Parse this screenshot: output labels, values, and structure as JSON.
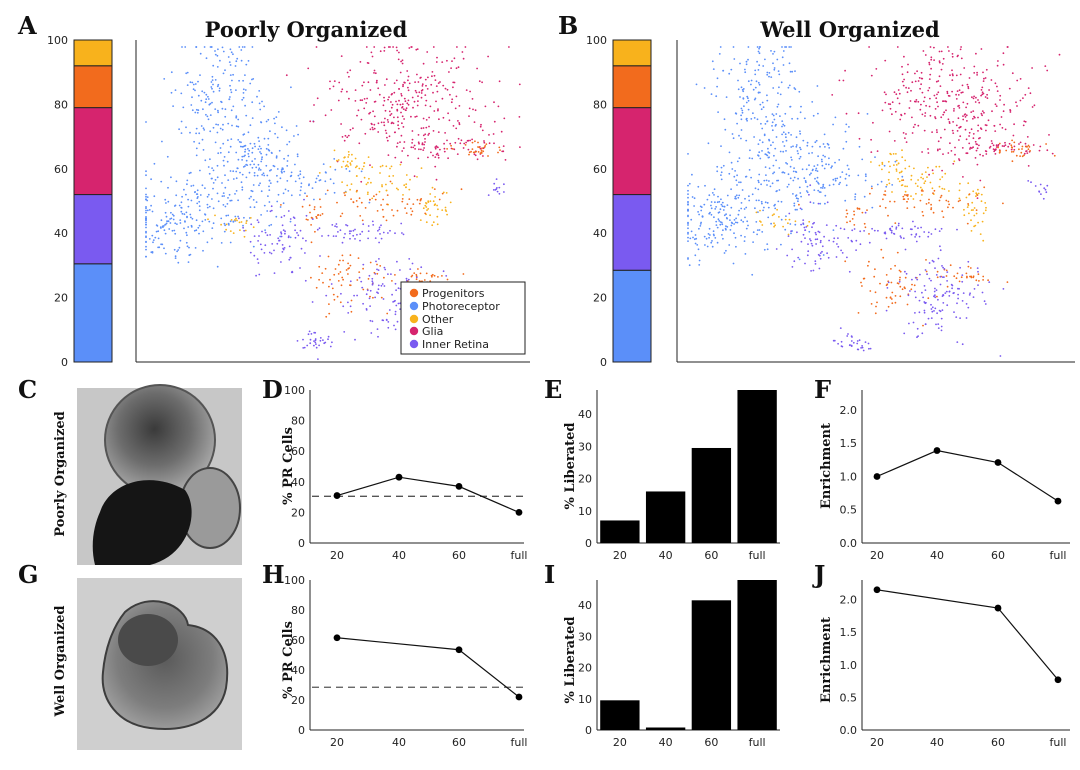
{
  "panels": {
    "A": {
      "letter": "A",
      "title": "Poorly Organized"
    },
    "B": {
      "letter": "B",
      "title": "Well Organized"
    },
    "C": {
      "letter": "C",
      "row_label": "Poorly Organized"
    },
    "D": {
      "letter": "D"
    },
    "E": {
      "letter": "E"
    },
    "F": {
      "letter": "F"
    },
    "G": {
      "letter": "G",
      "row_label": "Well Organized"
    },
    "H": {
      "letter": "H"
    },
    "I": {
      "letter": "I"
    },
    "J": {
      "letter": "J"
    }
  },
  "legend": [
    {
      "label": "Progenitors",
      "color": "#f26b1d"
    },
    {
      "label": "Photoreceptor",
      "color": "#5b8ff9"
    },
    {
      "label": "Other",
      "color": "#f8b21c"
    },
    {
      "label": "Glia",
      "color": "#d6246e"
    },
    {
      "label": "Inner Retina",
      "color": "#7a5af0"
    }
  ],
  "chart_data": [
    {
      "id": "A-stacked",
      "type": "bar",
      "stacked": true,
      "ylim": [
        0,
        100
      ],
      "yticks": [
        0,
        20,
        40,
        60,
        80,
        100
      ],
      "segments": [
        {
          "name": "Photoreceptor",
          "value": 30.5,
          "color": "#5b8ff9"
        },
        {
          "name": "Inner Retina",
          "value": 21.5,
          "color": "#7a5af0"
        },
        {
          "name": "Glia",
          "value": 27,
          "color": "#d6246e"
        },
        {
          "name": "Progenitors",
          "value": 13,
          "color": "#f26b1d"
        },
        {
          "name": "Other",
          "value": 8,
          "color": "#f8b21c"
        }
      ]
    },
    {
      "id": "B-stacked",
      "type": "bar",
      "stacked": true,
      "ylim": [
        0,
        100
      ],
      "yticks": [
        0,
        20,
        40,
        60,
        80,
        100
      ],
      "segments": [
        {
          "name": "Photoreceptor",
          "value": 28.5,
          "color": "#5b8ff9"
        },
        {
          "name": "Inner Retina",
          "value": 23.5,
          "color": "#7a5af0"
        },
        {
          "name": "Glia",
          "value": 27,
          "color": "#d6246e"
        },
        {
          "name": "Progenitors",
          "value": 13,
          "color": "#f26b1d"
        },
        {
          "name": "Other",
          "value": 8,
          "color": "#f8b21c"
        }
      ]
    },
    {
      "id": "D",
      "type": "line",
      "ylabel": "% PR Cells",
      "categories": [
        "20",
        "40",
        "60",
        "full"
      ],
      "values": [
        31,
        43,
        37,
        20
      ],
      "ylim": [
        0,
        100
      ],
      "yticks": [
        0,
        20,
        40,
        60,
        80,
        100
      ],
      "reference_line": 30.5
    },
    {
      "id": "E",
      "type": "bar",
      "ylabel": "% Liberated",
      "categories": [
        "20",
        "40",
        "60",
        "full"
      ],
      "values": [
        7,
        16,
        29.5,
        47.5
      ],
      "ylim": [
        0,
        47.5
      ],
      "yticks": [
        0,
        10,
        20,
        30,
        40
      ]
    },
    {
      "id": "F",
      "type": "line",
      "ylabel": "Enrichment",
      "categories": [
        "20",
        "40",
        "60",
        "full"
      ],
      "values": [
        1.0,
        1.39,
        1.21,
        0.63
      ],
      "ylim": [
        0,
        2.3
      ],
      "yticks": [
        "0.0",
        "0.5",
        "1.0",
        "1.5",
        "2.0"
      ]
    },
    {
      "id": "H",
      "type": "line",
      "ylabel": "% PR Cells",
      "categories": [
        "20",
        "40",
        "60",
        "full"
      ],
      "values": [
        61.5,
        null,
        53.5,
        22
      ],
      "ylim": [
        0,
        100
      ],
      "yticks": [
        0,
        20,
        40,
        60,
        80,
        100
      ],
      "reference_line": 28.5
    },
    {
      "id": "I",
      "type": "bar",
      "ylabel": "% Liberated",
      "categories": [
        "20",
        "40",
        "60",
        "full"
      ],
      "values": [
        9.5,
        0.8,
        41.5,
        48
      ],
      "ylim": [
        0,
        48
      ],
      "yticks": [
        0,
        10,
        20,
        30,
        40
      ]
    },
    {
      "id": "J",
      "type": "line",
      "ylabel": "Enrichment",
      "categories": [
        "20",
        "40",
        "60",
        "full"
      ],
      "values": [
        2.15,
        null,
        1.87,
        0.77
      ],
      "ylim": [
        0,
        2.3
      ],
      "yticks": [
        "0.0",
        "0.5",
        "1.0",
        "1.5",
        "2.0"
      ]
    }
  ]
}
